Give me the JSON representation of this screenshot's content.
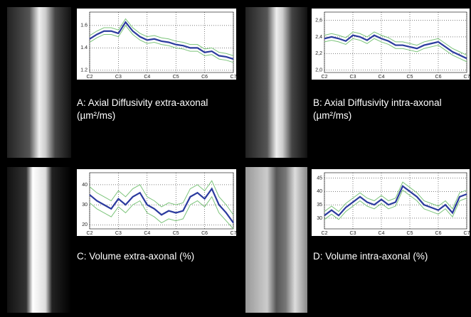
{
  "chart_data": [
    {
      "type": "line",
      "title": "A: Axial Diffusivity extra-axonal (µm²/ms)",
      "x": [
        2,
        2.25,
        2.5,
        2.75,
        3,
        3.25,
        3.5,
        3.75,
        4,
        4.25,
        4.5,
        4.75,
        5,
        5.25,
        5.5,
        5.75,
        6,
        6.25,
        6.5,
        6.75,
        7
      ],
      "xlim": [
        2,
        7
      ],
      "xticks": [
        {
          "value": 2,
          "label": "C2"
        },
        {
          "value": 3,
          "label": "C3"
        },
        {
          "value": 4,
          "label": "C4"
        },
        {
          "value": 5,
          "label": "C5"
        },
        {
          "value": 6,
          "label": "C6"
        },
        {
          "value": 7,
          "label": "C7"
        }
      ],
      "ylim": [
        1.18,
        1.72
      ],
      "yticks": [
        1.2,
        1.4,
        1.6
      ],
      "grid": true,
      "series": [
        {
          "color": "#7cc47a",
          "values": [
            1.51,
            1.55,
            1.58,
            1.58,
            1.56,
            1.66,
            1.58,
            1.53,
            1.5,
            1.51,
            1.49,
            1.48,
            1.46,
            1.45,
            1.43,
            1.43,
            1.39,
            1.4,
            1.36,
            1.35,
            1.33
          ]
        },
        {
          "color": "#7cc47a",
          "values": [
            1.45,
            1.49,
            1.52,
            1.52,
            1.5,
            1.6,
            1.52,
            1.47,
            1.44,
            1.45,
            1.43,
            1.42,
            1.4,
            1.39,
            1.37,
            1.37,
            1.33,
            1.34,
            1.3,
            1.29,
            1.27
          ]
        },
        {
          "color": "#2b3a9e",
          "values": [
            1.48,
            1.52,
            1.55,
            1.55,
            1.53,
            1.63,
            1.55,
            1.5,
            1.47,
            1.48,
            1.46,
            1.45,
            1.43,
            1.42,
            1.4,
            1.4,
            1.36,
            1.37,
            1.33,
            1.32,
            1.3
          ]
        }
      ]
    },
    {
      "type": "line",
      "title": "B: Axial Diffusivity intra-axonal (µm²/ms)",
      "x": [
        2,
        2.25,
        2.5,
        2.75,
        3,
        3.25,
        3.5,
        3.75,
        4,
        4.25,
        4.5,
        4.75,
        5,
        5.25,
        5.5,
        5.75,
        6,
        6.25,
        6.5,
        6.75,
        7
      ],
      "xlim": [
        2,
        7
      ],
      "xticks": [
        {
          "value": 2,
          "label": "C2"
        },
        {
          "value": 3,
          "label": "C3"
        },
        {
          "value": 4,
          "label": "C4"
        },
        {
          "value": 5,
          "label": "C5"
        },
        {
          "value": 6,
          "label": "C6"
        },
        {
          "value": 7,
          "label": "C7"
        }
      ],
      "ylim": [
        1.97,
        2.7
      ],
      "yticks": [
        {
          "value": 2,
          "label": "2,0"
        },
        {
          "value": 2.2,
          "label": "2,2"
        },
        {
          "value": 2.4,
          "label": "2,4"
        },
        {
          "value": 2.6,
          "label": "2,6"
        }
      ],
      "grid": true,
      "series": [
        {
          "color": "#7cc47a",
          "values": [
            2.42,
            2.44,
            2.42,
            2.39,
            2.46,
            2.44,
            2.4,
            2.46,
            2.42,
            2.39,
            2.34,
            2.34,
            2.32,
            2.3,
            2.34,
            2.36,
            2.38,
            2.32,
            2.26,
            2.22,
            2.18
          ]
        },
        {
          "color": "#7cc47a",
          "values": [
            2.34,
            2.36,
            2.34,
            2.31,
            2.38,
            2.36,
            2.32,
            2.38,
            2.34,
            2.31,
            2.26,
            2.26,
            2.24,
            2.22,
            2.26,
            2.28,
            2.3,
            2.24,
            2.18,
            2.14,
            2.1
          ]
        },
        {
          "color": "#2b3a9e",
          "values": [
            2.38,
            2.4,
            2.38,
            2.35,
            2.42,
            2.4,
            2.36,
            2.42,
            2.38,
            2.35,
            2.3,
            2.3,
            2.28,
            2.26,
            2.3,
            2.32,
            2.34,
            2.28,
            2.22,
            2.18,
            2.14
          ]
        }
      ]
    },
    {
      "type": "line",
      "title": "C: Volume extra-axonal (%)",
      "x": [
        2,
        2.25,
        2.5,
        2.75,
        3,
        3.25,
        3.5,
        3.75,
        4,
        4.25,
        4.5,
        4.75,
        5,
        5.25,
        5.5,
        5.75,
        6,
        6.25,
        6.5,
        6.75,
        7
      ],
      "xlim": [
        2,
        7
      ],
      "xticks": [
        {
          "value": 2,
          "label": "C2"
        },
        {
          "value": 3,
          "label": "C3"
        },
        {
          "value": 4,
          "label": "C4"
        },
        {
          "value": 5,
          "label": "C5"
        },
        {
          "value": 6,
          "label": "C6"
        },
        {
          "value": 7,
          "label": "C7"
        }
      ],
      "ylim": [
        18,
        46
      ],
      "yticks": [
        20,
        30,
        40
      ],
      "grid": true,
      "series": [
        {
          "color": "#7cc47a",
          "values": [
            39,
            36,
            34,
            32,
            37,
            34,
            38,
            40,
            34,
            32,
            29,
            31,
            30,
            31,
            38,
            40,
            37,
            42,
            34,
            30,
            25
          ]
        },
        {
          "color": "#7cc47a",
          "values": [
            31,
            28,
            26,
            24,
            29,
            26,
            30,
            32,
            26,
            24,
            21,
            23,
            22,
            23,
            30,
            32,
            29,
            34,
            26,
            22,
            18
          ]
        },
        {
          "color": "#2b3a9e",
          "values": [
            35,
            32,
            30,
            28,
            33,
            30,
            34,
            36,
            30,
            28,
            25,
            27,
            26,
            27,
            34,
            36,
            33,
            38,
            30,
            26,
            21
          ]
        }
      ]
    },
    {
      "type": "line",
      "title": "D: Volume intra-axonal (%)",
      "x": [
        2,
        2.25,
        2.5,
        2.75,
        3,
        3.25,
        3.5,
        3.75,
        4,
        4.25,
        4.5,
        4.75,
        5,
        5.25,
        5.5,
        5.75,
        6,
        6.25,
        6.5,
        6.75,
        7
      ],
      "xlim": [
        2,
        7
      ],
      "xticks": [
        {
          "value": 2,
          "label": "C2"
        },
        {
          "value": 3,
          "label": "C3"
        },
        {
          "value": 4,
          "label": "C4"
        },
        {
          "value": 5,
          "label": "C5"
        },
        {
          "value": 6,
          "label": "C6"
        },
        {
          "value": 7,
          "label": "C7"
        }
      ],
      "ylim": [
        26,
        47
      ],
      "yticks": [
        30,
        35,
        40,
        45
      ],
      "grid": true,
      "series": [
        {
          "color": "#7cc47a",
          "values": [
            32.5,
            34.5,
            32.5,
            35.5,
            37.5,
            39.5,
            37.5,
            36.5,
            38.5,
            36.5,
            37.5,
            43.5,
            41.5,
            39.5,
            36.5,
            35.5,
            34.5,
            36.5,
            33.5,
            39.5,
            40.5
          ]
        },
        {
          "color": "#7cc47a",
          "values": [
            29.5,
            31.5,
            29.5,
            32.5,
            34.5,
            36.5,
            34.5,
            33.5,
            35.5,
            33.5,
            34.5,
            40.5,
            38.5,
            36.5,
            33.5,
            32.5,
            31.5,
            33.5,
            30.5,
            36.5,
            37.5
          ]
        },
        {
          "color": "#2b3a9e",
          "values": [
            31,
            33,
            31,
            34,
            36,
            38,
            36,
            35,
            37,
            35,
            36,
            42,
            40,
            38,
            35,
            34,
            33,
            35,
            32,
            38,
            39
          ]
        }
      ]
    }
  ]
}
